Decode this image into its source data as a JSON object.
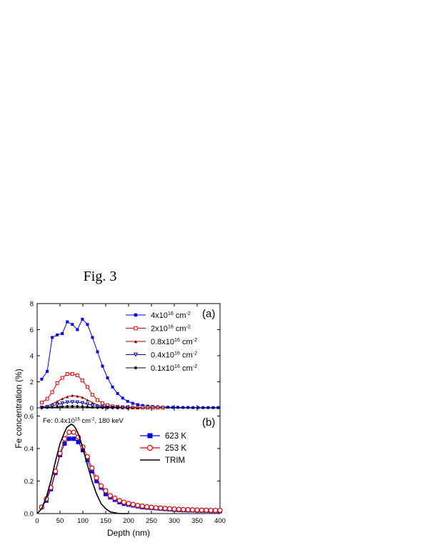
{
  "figure_label": "Fig. 3",
  "shared_xlabel": "Depth (nm)",
  "shared_ylabel": "Fe concentration (%)",
  "chart_data": [
    {
      "panel": "(a)",
      "type": "line",
      "xlim": [
        0,
        400
      ],
      "ylim": [
        0,
        8
      ],
      "xticks": [
        0,
        50,
        100,
        150,
        200,
        250,
        300,
        350,
        400
      ],
      "yticks": [
        0,
        2,
        4,
        6,
        8
      ],
      "ytick_labels": [
        "0",
        "2",
        "4",
        "6",
        "8"
      ],
      "legend_position": "top-right",
      "series": [
        {
          "name": "4x10¹⁶ cm⁻²",
          "legend": {
            "base": "4x10",
            "exp": "16",
            "unit": " cm",
            "uexp": "-2"
          },
          "color": "#0000ee",
          "marker": "square-filled",
          "x": [
            10,
            22,
            33,
            44,
            55,
            66,
            77,
            88,
            99,
            110,
            121,
            132,
            143,
            154,
            165,
            176,
            187,
            198,
            209,
            220,
            231,
            242,
            253,
            264,
            275,
            286,
            297,
            308,
            319,
            330,
            341,
            352,
            363,
            374,
            385,
            396
          ],
          "y": [
            2.2,
            2.8,
            5.4,
            5.6,
            5.7,
            6.6,
            6.4,
            6.0,
            6.8,
            6.4,
            5.4,
            4.3,
            3.2,
            2.3,
            1.6,
            1.1,
            0.75,
            0.5,
            0.35,
            0.25,
            0.18,
            0.13,
            0.1,
            0.08,
            0.06,
            0.05,
            0.04,
            0.04,
            0.03,
            0.03,
            0.02,
            0.02,
            0.02,
            0.02,
            0.02,
            0.02
          ]
        },
        {
          "name": "2x10¹⁶ cm⁻²",
          "legend": {
            "base": "2x10",
            "exp": "16",
            "unit": " cm",
            "uexp": "-2"
          },
          "color": "#e00000",
          "marker": "square-open",
          "x": [
            10,
            22,
            33,
            44,
            55,
            66,
            77,
            88,
            99,
            110,
            121,
            132,
            143,
            154,
            165,
            176,
            187,
            198,
            209,
            220,
            231,
            242,
            253,
            264,
            275
          ],
          "y": [
            0.4,
            0.7,
            1.2,
            1.9,
            2.3,
            2.6,
            2.6,
            2.5,
            2.1,
            1.6,
            1.0,
            0.6,
            0.35,
            0.2,
            0.12,
            0.08,
            0.05,
            0.04,
            0.03,
            0.02,
            0.02,
            0.01,
            0.01,
            0.01,
            0.01
          ]
        },
        {
          "name": "0.8x10¹⁶ cm⁻²",
          "legend": {
            "base": "0.8x10",
            "exp": "16",
            "unit": " cm",
            "uexp": "-2"
          },
          "color": "#990000",
          "marker": "triangle-up-filled",
          "x": [
            10,
            22,
            33,
            44,
            55,
            66,
            77,
            88,
            99,
            110,
            121,
            132,
            143,
            154,
            165,
            176,
            187,
            198,
            209,
            220
          ],
          "y": [
            0.05,
            0.15,
            0.3,
            0.5,
            0.7,
            0.85,
            0.95,
            0.9,
            0.8,
            0.6,
            0.4,
            0.22,
            0.12,
            0.07,
            0.04,
            0.02,
            0.02,
            0.01,
            0.01,
            0.0
          ]
        },
        {
          "name": "0.4x10¹⁶ cm⁻²",
          "legend": {
            "base": "0.4x10",
            "exp": "16",
            "unit": " cm",
            "uexp": "-2"
          },
          "color": "#0000aa",
          "marker": "triangle-down-open",
          "x": [
            10,
            22,
            33,
            44,
            55,
            66,
            77,
            88,
            99,
            110,
            121,
            132,
            143,
            154,
            165,
            176,
            187,
            198
          ],
          "y": [
            0.02,
            0.06,
            0.15,
            0.25,
            0.35,
            0.43,
            0.45,
            0.43,
            0.38,
            0.28,
            0.18,
            0.1,
            0.06,
            0.03,
            0.02,
            0.01,
            0.01,
            0.0
          ]
        },
        {
          "name": "0.1x10¹⁶ cm⁻²",
          "legend": {
            "base": "0.1x10",
            "exp": "16",
            "unit": " cm",
            "uexp": "-2"
          },
          "color": "#000000",
          "marker": "star",
          "x": [
            10,
            22,
            33,
            44,
            55,
            66,
            77,
            88,
            99,
            110,
            121,
            132,
            143,
            154,
            165,
            176
          ],
          "y": [
            0.0,
            0.02,
            0.04,
            0.06,
            0.09,
            0.11,
            0.12,
            0.11,
            0.09,
            0.07,
            0.04,
            0.02,
            0.01,
            0.01,
            0.0,
            0.0
          ]
        }
      ]
    },
    {
      "panel": "(b)",
      "type": "line",
      "annotation": {
        "base": "Fe: 0.4x10",
        "exp": "16",
        "unit": " cm",
        "uexp": "-2",
        "tail": ", 180 keV"
      },
      "xlabel": "Depth (nm)",
      "xlim": [
        0,
        400
      ],
      "ylim": [
        0,
        0.65
      ],
      "xticks": [
        0,
        50,
        100,
        150,
        200,
        250,
        300,
        350,
        400
      ],
      "yticks": [
        0.0,
        0.2,
        0.4,
        0.6
      ],
      "ytick_labels": [
        "0.0",
        "0.2",
        "0.4",
        "0.6"
      ],
      "legend_position": "top-right",
      "series": [
        {
          "name": "623 K",
          "color": "#0000ee",
          "marker": "square-filled",
          "x": [
            10,
            20,
            30,
            40,
            50,
            60,
            70,
            80,
            90,
            100,
            110,
            120,
            130,
            140,
            150,
            160,
            170,
            180,
            190,
            200,
            210,
            220,
            230,
            240,
            250,
            260,
            270,
            280,
            290,
            300,
            310,
            320,
            330,
            340,
            350,
            360,
            370,
            380,
            390,
            400
          ],
          "y": [
            0.04,
            0.08,
            0.15,
            0.25,
            0.36,
            0.43,
            0.46,
            0.46,
            0.44,
            0.39,
            0.33,
            0.26,
            0.2,
            0.16,
            0.12,
            0.1,
            0.085,
            0.07,
            0.06,
            0.055,
            0.05,
            0.045,
            0.04,
            0.037,
            0.035,
            0.033,
            0.03,
            0.028,
            0.026,
            0.024,
            0.022,
            0.021,
            0.02,
            0.02,
            0.019,
            0.018,
            0.018,
            0.017,
            0.017,
            0.016
          ]
        },
        {
          "name": "253 K",
          "color": "#e00000",
          "marker": "circle-open",
          "x": [
            10,
            20,
            30,
            40,
            50,
            60,
            70,
            80,
            90,
            100,
            110,
            120,
            130,
            140,
            150,
            160,
            170,
            180,
            190,
            200,
            210,
            220,
            230,
            240,
            250,
            260,
            270,
            280,
            290,
            300,
            310,
            320,
            330,
            340,
            350,
            360,
            370,
            380,
            390,
            400
          ],
          "y": [
            0.04,
            0.09,
            0.16,
            0.26,
            0.37,
            0.46,
            0.5,
            0.5,
            0.47,
            0.41,
            0.35,
            0.28,
            0.22,
            0.17,
            0.14,
            0.11,
            0.095,
            0.08,
            0.07,
            0.062,
            0.056,
            0.05,
            0.046,
            0.042,
            0.039,
            0.036,
            0.034,
            0.032,
            0.03,
            0.028,
            0.026,
            0.025,
            0.024,
            0.023,
            0.022,
            0.021,
            0.021,
            0.02,
            0.02,
            0.02
          ]
        },
        {
          "name": "TRIM",
          "color": "#000000",
          "marker": "none",
          "x": [
            0,
            10,
            20,
            30,
            40,
            50,
            60,
            65,
            70,
            75,
            80,
            85,
            90,
            95,
            100,
            110,
            120,
            130,
            140,
            150,
            160,
            170,
            180,
            190,
            200
          ],
          "y": [
            0.0,
            0.03,
            0.1,
            0.2,
            0.32,
            0.43,
            0.5,
            0.53,
            0.54,
            0.55,
            0.54,
            0.52,
            0.49,
            0.45,
            0.4,
            0.3,
            0.2,
            0.12,
            0.06,
            0.03,
            0.01,
            0.005,
            0.0,
            0.0,
            0.0
          ]
        }
      ]
    }
  ]
}
